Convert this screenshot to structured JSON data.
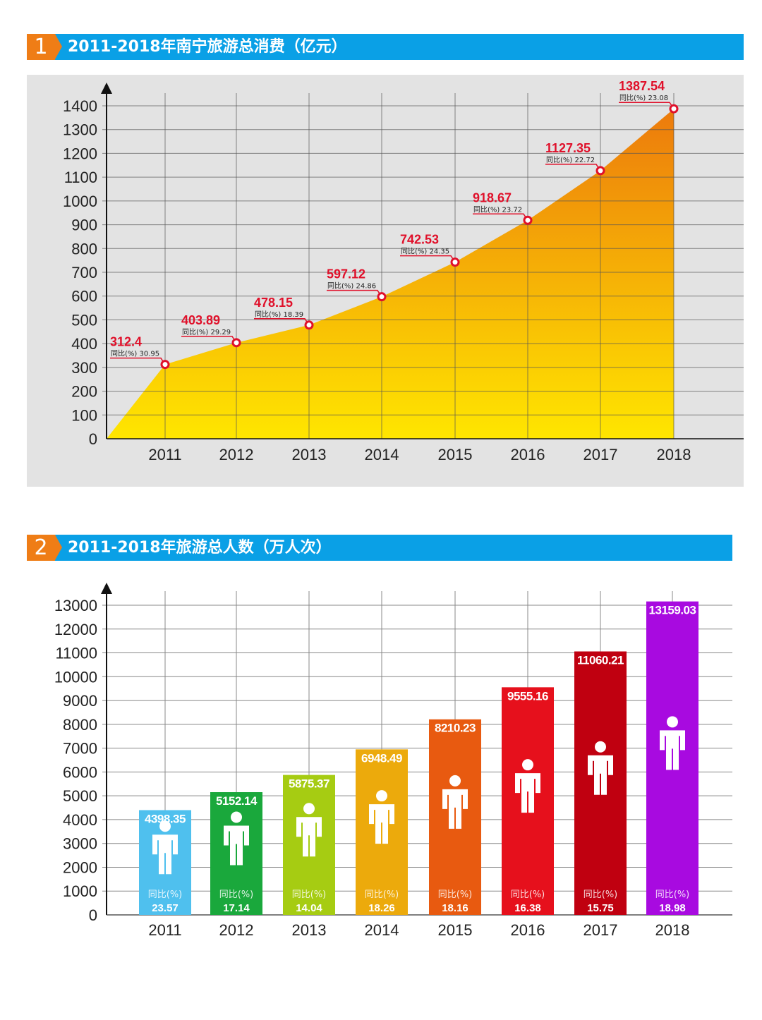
{
  "sections": [
    {
      "number": "1",
      "title": "2011-2018年南宁旅游总消费（亿元）"
    },
    {
      "number": "2",
      "title": "2011-2018年旅游总人数（万人次）"
    }
  ],
  "chart_data": [
    {
      "type": "area",
      "title": "2011-2018年南宁旅游总消费（亿元）",
      "categories": [
        "2011",
        "2012",
        "2013",
        "2014",
        "2015",
        "2016",
        "2017",
        "2018"
      ],
      "values": [
        312.4,
        403.89,
        478.15,
        597.12,
        742.53,
        918.67,
        1127.35,
        1387.54
      ],
      "yoy_label": "同比(%)",
      "yoy": [
        30.95,
        29.29,
        18.39,
        24.86,
        24.35,
        23.72,
        22.72,
        23.08
      ],
      "yticks": [
        0,
        100,
        200,
        300,
        400,
        500,
        600,
        700,
        800,
        900,
        1000,
        1100,
        1200,
        1300,
        1400
      ],
      "ylim": [
        0,
        1400
      ],
      "grid": true,
      "colors": {
        "area_top": "#ec7a0c",
        "area_bottom": "#ffe600",
        "value_label": "#e0102a",
        "background": "#e3e3e3"
      }
    },
    {
      "type": "bar",
      "title": "2011-2018年旅游总人数（万人次）",
      "categories": [
        "2011",
        "2012",
        "2013",
        "2014",
        "2015",
        "2016",
        "2017",
        "2018"
      ],
      "values": [
        4398.35,
        5152.14,
        5875.37,
        6948.49,
        8210.23,
        9555.16,
        11060.21,
        13159.03
      ],
      "yoy_label": "同比(%)",
      "yoy": [
        23.57,
        17.14,
        14.04,
        18.26,
        18.16,
        16.38,
        15.75,
        18.98
      ],
      "yticks": [
        0,
        1000,
        2000,
        3000,
        4000,
        5000,
        6000,
        7000,
        8000,
        9000,
        10000,
        11000,
        12000,
        13000
      ],
      "ylim": [
        0,
        13000
      ],
      "grid": true,
      "bar_colors": [
        "#4fc0ee",
        "#1aa83c",
        "#a6cc12",
        "#ecaa0c",
        "#e85a10",
        "#e6101c",
        "#c00010",
        "#a80ae0"
      ],
      "icon": "person-icon"
    }
  ]
}
